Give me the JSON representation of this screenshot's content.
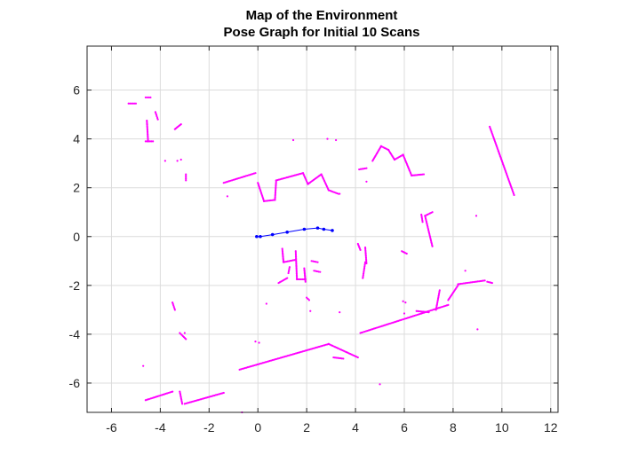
{
  "chart_data": {
    "type": "scatter",
    "title": "Map of the Environment",
    "subtitle": "Pose Graph for Initial 10 Scans",
    "xlabel": "",
    "ylabel": "",
    "xlim": [
      -7,
      12.3
    ],
    "ylim": [
      -7.2,
      7.8
    ],
    "xticks": [
      -6,
      -4,
      -2,
      0,
      2,
      4,
      6,
      8,
      10,
      12
    ],
    "yticks": [
      -6,
      -4,
      -2,
      0,
      2,
      4,
      6
    ],
    "grid": true,
    "box": true,
    "colors": {
      "map_points": "#ff00ff",
      "pose_graph": "#0000ff",
      "grid": "#dcdcdc",
      "axes": "#262626"
    },
    "series": [
      {
        "kind": "pose_graph",
        "style": "line-with-markers",
        "x": [
          -0.05,
          0.1,
          0.6,
          1.2,
          1.9,
          2.45,
          2.7,
          3.05
        ],
        "y": [
          0.0,
          0.0,
          0.08,
          0.18,
          0.3,
          0.35,
          0.3,
          0.25
        ]
      },
      {
        "kind": "map_points",
        "style": "points",
        "segments": [
          [
            [
              -5.3,
              5.45
            ],
            [
              -5.0,
              5.45
            ]
          ],
          [
            [
              -4.6,
              5.7
            ],
            [
              -4.4,
              5.7
            ]
          ],
          [
            [
              -4.2,
              5.1
            ],
            [
              -4.1,
              4.8
            ]
          ],
          [
            [
              -4.55,
              4.75
            ],
            [
              -4.5,
              3.9
            ]
          ],
          [
            [
              -4.6,
              3.9
            ],
            [
              -4.3,
              3.9
            ]
          ],
          [
            [
              -3.4,
              4.4
            ],
            [
              -3.15,
              4.6
            ]
          ],
          [
            [
              -2.95,
              2.55
            ],
            [
              -2.95,
              2.3
            ]
          ],
          [
            [
              -1.4,
              2.2
            ],
            [
              -0.1,
              2.6
            ]
          ],
          [
            [
              0.0,
              2.2
            ],
            [
              0.25,
              1.45
            ]
          ],
          [
            [
              0.25,
              1.45
            ],
            [
              0.7,
              1.5
            ]
          ],
          [
            [
              0.7,
              1.5
            ],
            [
              0.75,
              2.3
            ]
          ],
          [
            [
              0.75,
              2.3
            ],
            [
              1.85,
              2.6
            ]
          ],
          [
            [
              1.85,
              2.6
            ],
            [
              2.05,
              2.15
            ]
          ],
          [
            [
              2.05,
              2.15
            ],
            [
              2.6,
              2.55
            ]
          ],
          [
            [
              2.6,
              2.55
            ],
            [
              2.9,
              1.9
            ]
          ],
          [
            [
              2.9,
              1.9
            ],
            [
              3.3,
              1.75
            ]
          ],
          [
            [
              4.15,
              2.75
            ],
            [
              4.45,
              2.8
            ]
          ],
          [
            [
              4.7,
              3.1
            ],
            [
              5.05,
              3.7
            ]
          ],
          [
            [
              5.05,
              3.7
            ],
            [
              5.35,
              3.55
            ]
          ],
          [
            [
              5.35,
              3.55
            ],
            [
              5.6,
              3.15
            ]
          ],
          [
            [
              5.6,
              3.15
            ],
            [
              5.95,
              3.35
            ]
          ],
          [
            [
              5.95,
              3.35
            ],
            [
              6.3,
              2.5
            ]
          ],
          [
            [
              6.3,
              2.5
            ],
            [
              6.8,
              2.55
            ]
          ],
          [
            [
              6.85,
              0.85
            ],
            [
              7.15,
              1.0
            ]
          ],
          [
            [
              6.85,
              0.85
            ],
            [
              7.15,
              -0.4
            ]
          ],
          [
            [
              6.7,
              0.9
            ],
            [
              6.75,
              0.6
            ]
          ],
          [
            [
              9.5,
              4.5
            ],
            [
              10.5,
              1.7
            ]
          ],
          [
            [
              4.1,
              -0.3
            ],
            [
              4.2,
              -0.55
            ]
          ],
          [
            [
              4.4,
              -0.45
            ],
            [
              4.45,
              -1.1
            ]
          ],
          [
            [
              4.3,
              -1.7
            ],
            [
              4.4,
              -1.05
            ]
          ],
          [
            [
              5.9,
              -0.6
            ],
            [
              6.1,
              -0.7
            ]
          ],
          [
            [
              -0.75,
              -5.45
            ],
            [
              2.9,
              -4.4
            ]
          ],
          [
            [
              2.9,
              -4.4
            ],
            [
              4.1,
              -4.95
            ]
          ],
          [
            [
              3.1,
              -4.95
            ],
            [
              3.5,
              -5.0
            ]
          ],
          [
            [
              4.2,
              -3.95
            ],
            [
              7.8,
              -2.8
            ]
          ],
          [
            [
              7.3,
              -3.0
            ],
            [
              7.45,
              -2.2
            ]
          ],
          [
            [
              7.8,
              -2.6
            ],
            [
              8.2,
              -2.0
            ]
          ],
          [
            [
              8.2,
              -1.95
            ],
            [
              9.3,
              -1.8
            ]
          ],
          [
            [
              9.4,
              -1.85
            ],
            [
              9.6,
              -1.9
            ]
          ],
          [
            [
              6.5,
              -3.05
            ],
            [
              7.0,
              -3.1
            ]
          ],
          [
            [
              -4.6,
              -6.7
            ],
            [
              -3.5,
              -6.35
            ]
          ],
          [
            [
              -3.2,
              -6.35
            ],
            [
              -3.1,
              -6.85
            ]
          ],
          [
            [
              -3.0,
              -6.85
            ],
            [
              -1.4,
              -6.4
            ]
          ],
          [
            [
              -3.2,
              -3.95
            ],
            [
              -2.95,
              -4.2
            ]
          ],
          [
            [
              -3.5,
              -2.7
            ],
            [
              -3.4,
              -3.0
            ]
          ],
          [
            [
              0.85,
              -1.9
            ],
            [
              1.2,
              -1.7
            ]
          ],
          [
            [
              1.25,
              -1.5
            ],
            [
              1.3,
              -1.25
            ]
          ],
          [
            [
              1.0,
              -0.5
            ],
            [
              1.05,
              -1.05
            ]
          ],
          [
            [
              1.05,
              -1.05
            ],
            [
              1.55,
              -0.95
            ]
          ],
          [
            [
              1.55,
              -0.6
            ],
            [
              1.6,
              -1.75
            ]
          ],
          [
            [
              1.6,
              -1.75
            ],
            [
              1.95,
              -1.75
            ]
          ],
          [
            [
              1.9,
              -1.3
            ],
            [
              1.95,
              -1.85
            ]
          ],
          [
            [
              2.2,
              -1.0
            ],
            [
              2.45,
              -1.05
            ]
          ],
          [
            [
              2.3,
              -1.4
            ],
            [
              2.55,
              -1.45
            ]
          ],
          [
            [
              2.0,
              -2.5
            ],
            [
              2.1,
              -2.6
            ]
          ]
        ],
        "points": [
          [
            -4.7,
            -5.3
          ],
          [
            -3.0,
            -3.95
          ],
          [
            -3.3,
            3.1
          ],
          [
            -3.15,
            3.15
          ],
          [
            -3.8,
            3.1
          ],
          [
            -1.25,
            1.65
          ],
          [
            1.45,
            3.95
          ],
          [
            2.85,
            4.0
          ],
          [
            3.2,
            3.95
          ],
          [
            3.35,
            1.75
          ],
          [
            4.45,
            2.25
          ],
          [
            8.95,
            0.85
          ],
          [
            8.5,
            -1.4
          ],
          [
            9.0,
            -3.8
          ],
          [
            5.0,
            -6.05
          ],
          [
            0.35,
            -2.75
          ],
          [
            2.15,
            -3.05
          ],
          [
            3.35,
            -3.1
          ],
          [
            -0.1,
            -4.3
          ],
          [
            0.05,
            -4.35
          ],
          [
            -0.65,
            -7.2
          ],
          [
            5.65,
            7.85
          ],
          [
            5.95,
            -2.65
          ],
          [
            6.05,
            -2.7
          ],
          [
            6.0,
            -3.15
          ]
        ]
      }
    ]
  }
}
